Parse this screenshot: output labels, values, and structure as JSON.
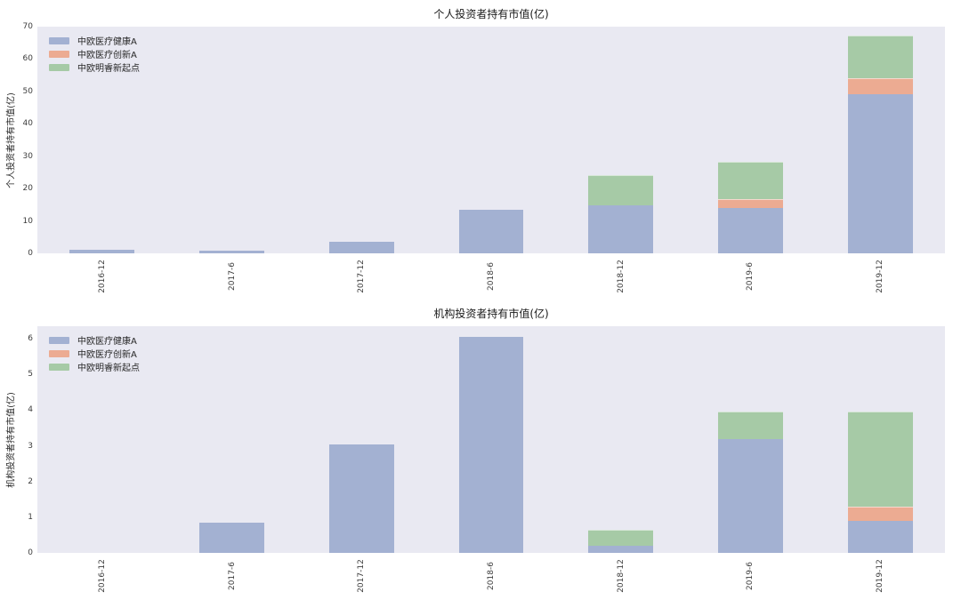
{
  "palette": {
    "blue": "#a3b1d2",
    "orange": "#ecab92",
    "green": "#a6caa6",
    "plot_background": "#e9e9f2",
    "page_background": "#ffffff",
    "title_text": "#1a1a1a",
    "tick_text": "#3c3c3c"
  },
  "legend": {
    "position": "upper left",
    "items": [
      "中欧医疗健康A",
      "中欧医疗创新A",
      "中欧明睿新起点"
    ]
  },
  "chart_data": [
    {
      "type": "bar",
      "stacked": true,
      "title": "个人投资者持有市值(亿)",
      "ylabel": "个人投资者持有市值(亿)",
      "xlabel": "",
      "categories": [
        "2016-12",
        "2017-6",
        "2017-12",
        "2018-6",
        "2018-12",
        "2019-6",
        "2019-12"
      ],
      "series": [
        {
          "name": "中欧医疗健康A",
          "color_key": "blue",
          "values": [
            1.2,
            0.7,
            3.6,
            13.5,
            14.8,
            14.0,
            49.2
          ]
        },
        {
          "name": "中欧医疗创新A",
          "color_key": "orange",
          "values": [
            0,
            0,
            0,
            0,
            0,
            2.7,
            5.0
          ]
        },
        {
          "name": "中欧明睿新起点",
          "color_key": "green",
          "values": [
            0,
            0,
            0,
            0,
            9.4,
            11.5,
            13.2
          ]
        }
      ],
      "stack_totals": [
        1.2,
        0.7,
        3.6,
        13.5,
        24.2,
        28.2,
        67.4
      ],
      "ylim": [
        0,
        70
      ],
      "yticks": [
        0,
        10,
        20,
        30,
        40,
        50,
        60,
        70
      ],
      "grid": false,
      "legend_position": "upper left",
      "xtick_rotation": 90
    },
    {
      "type": "bar",
      "stacked": true,
      "title": "机构投资者持有市值(亿)",
      "ylabel": "机构投资者持有市值(亿)",
      "xlabel": "",
      "categories": [
        "2016-12",
        "2017-6",
        "2017-12",
        "2018-6",
        "2018-12",
        "2019-6",
        "2019-12"
      ],
      "series": [
        {
          "name": "中欧医疗健康A",
          "color_key": "blue",
          "values": [
            0,
            0.85,
            3.05,
            6.05,
            0.2,
            3.2,
            0.9
          ]
        },
        {
          "name": "中欧医疗创新A",
          "color_key": "orange",
          "values": [
            0,
            0,
            0,
            0,
            0,
            0,
            0.4
          ]
        },
        {
          "name": "中欧明睿新起点",
          "color_key": "green",
          "values": [
            0,
            0,
            0,
            0,
            0.45,
            0.75,
            2.65
          ]
        }
      ],
      "stack_totals": [
        0,
        0.85,
        3.05,
        6.05,
        0.65,
        3.95,
        3.95
      ],
      "ylim": [
        0,
        6.35
      ],
      "yticks": [
        0,
        1,
        2,
        3,
        4,
        5,
        6
      ],
      "grid": false,
      "legend_position": "upper left",
      "xtick_rotation": 90
    }
  ]
}
